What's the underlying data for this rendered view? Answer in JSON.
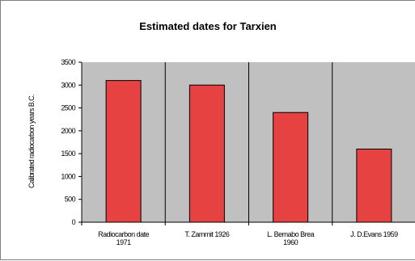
{
  "chart_data": {
    "type": "bar",
    "title": "Estimated dates for Tarxien",
    "ylabel": "Calibrated radiocarbon years B.C.",
    "xlabel": "",
    "categories": [
      [
        "Radiocarbon date",
        "1971"
      ],
      [
        "T. Zammit 1926"
      ],
      [
        "L. Bernabo Brea",
        "1960"
      ],
      [
        "J. D.Evans 1959"
      ]
    ],
    "values": [
      3100,
      3000,
      2400,
      1600
    ],
    "ylim": [
      0,
      3500
    ],
    "yticks": [
      "0",
      "500",
      "1000",
      "1500",
      "2000",
      "2500",
      "3000",
      "3500"
    ],
    "grid": false,
    "legend": "none",
    "colors": {
      "plot_background": "#c0c0c0",
      "bar_fill": "#e64242",
      "bar_stroke": "#000000",
      "separator": "#000000"
    }
  }
}
